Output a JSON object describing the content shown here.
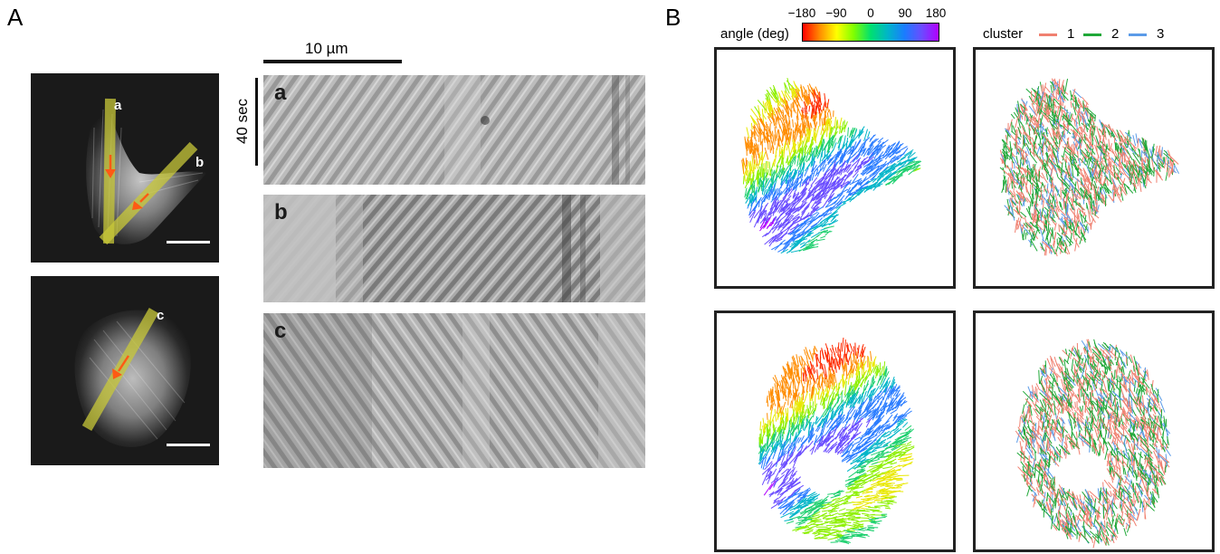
{
  "panel_a": {
    "letter": "A",
    "scale_bar_label": "10 µm",
    "time_bar_label": "40 sec",
    "cells": [
      {
        "lines": [
          "a",
          "b"
        ]
      },
      {
        "lines": [
          "c"
        ]
      }
    ],
    "kymographs": [
      {
        "label": "a"
      },
      {
        "label": "b"
      },
      {
        "label": "c"
      }
    ]
  },
  "panel_b": {
    "letter": "B",
    "angle_legend": {
      "title": "angle (deg)",
      "ticks": [
        "−180",
        "−90",
        "0",
        "90",
        "180"
      ]
    },
    "cluster_legend": {
      "title": "cluster",
      "entries": [
        {
          "label": "1",
          "color": "#f08070"
        },
        {
          "label": "2",
          "color": "#1fa838"
        },
        {
          "label": "3",
          "color": "#5b9be8"
        }
      ]
    }
  },
  "colors": {
    "overlay_line": "#c8c83a",
    "arrow": "#ff5a14"
  }
}
